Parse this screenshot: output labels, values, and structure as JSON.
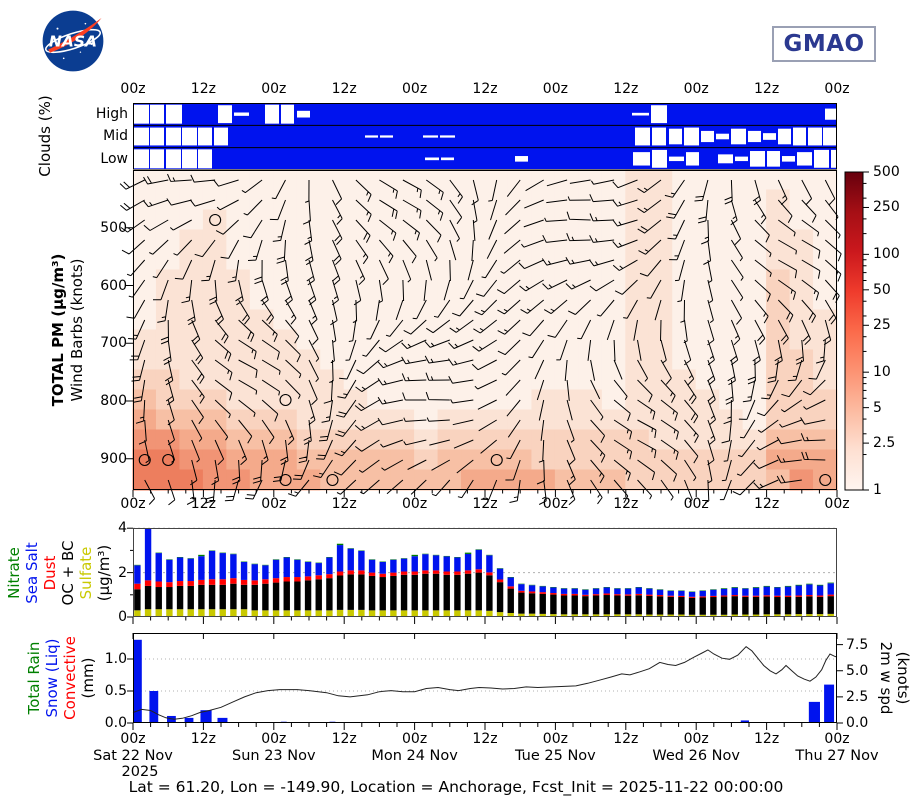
{
  "header": {
    "nasa": "NASA",
    "gmao": "GMAO"
  },
  "caption": "Lat = 61.20, Lon = -149.90, Location = Anchorage, Fcst_Init = 2025-11-22 00:00:00",
  "time_axis": {
    "major_hours": [
      0,
      12,
      24,
      36,
      48,
      60,
      72,
      84,
      96,
      108,
      120
    ],
    "labels": [
      "00z",
      "12z",
      "00z",
      "12z",
      "00z",
      "12z",
      "00z",
      "12z",
      "00z",
      "12z",
      "00z"
    ],
    "minor_step_hours": 3
  },
  "dates": [
    {
      "hour": 0,
      "line1": "Sat 22 Nov",
      "line2": "2025"
    },
    {
      "hour": 24,
      "line1": "Sun 23 Nov"
    },
    {
      "hour": 48,
      "line1": "Mon 24 Nov"
    },
    {
      "hour": 72,
      "line1": "Tue 25 Nov"
    },
    {
      "hour": 96,
      "line1": "Wed 26 Nov"
    },
    {
      "hour": 120,
      "line1": "Thu 27 Nov"
    }
  ],
  "chart_data": [
    {
      "id": "clouds",
      "type": "heatmap",
      "ylabel": "Clouds (%)",
      "rows": [
        "High",
        "Mid",
        "Low"
      ],
      "bg_color": "#0013ee",
      "clear_boxes": {
        "High": [
          [
            1,
            15,
            0.85
          ],
          [
            17,
            14,
            0.85
          ],
          [
            33,
            16,
            0.85
          ],
          [
            85,
            14,
            0.8
          ],
          [
            101,
            15,
            0.15
          ],
          [
            132,
            14,
            0.85
          ],
          [
            148,
            13,
            0.85
          ],
          [
            164,
            13,
            0.3
          ],
          [
            499,
            17,
            0.12
          ],
          [
            518,
            16,
            0.8
          ],
          [
            692,
            11,
            0.5
          ]
        ],
        "Mid": [
          [
            1,
            15,
            0.8
          ],
          [
            17,
            14,
            0.8
          ],
          [
            33,
            15,
            0.8
          ],
          [
            49,
            15,
            0.8
          ],
          [
            65,
            14,
            0.8
          ],
          [
            81,
            14,
            0.8
          ],
          [
            232,
            13,
            0.1
          ],
          [
            247,
            13,
            0.1
          ],
          [
            290,
            15,
            0.1
          ],
          [
            307,
            15,
            0.1
          ],
          [
            502,
            15,
            0.8
          ],
          [
            519,
            14,
            0.8
          ],
          [
            536,
            13,
            0.7
          ],
          [
            551,
            15,
            0.8
          ],
          [
            568,
            13,
            0.5
          ],
          [
            583,
            13,
            0.25
          ],
          [
            598,
            15,
            0.7
          ],
          [
            615,
            13,
            0.5
          ],
          [
            630,
            13,
            0.3
          ],
          [
            645,
            13,
            0.7
          ],
          [
            660,
            13,
            0.8
          ],
          [
            675,
            14,
            0.8
          ],
          [
            690,
            14,
            0.8
          ]
        ],
        "Low": [
          [
            1,
            15,
            0.85
          ],
          [
            17,
            14,
            0.85
          ],
          [
            33,
            15,
            0.85
          ],
          [
            49,
            15,
            0.85
          ],
          [
            65,
            14,
            0.85
          ],
          [
            292,
            14,
            0.12
          ],
          [
            308,
            13,
            0.12
          ],
          [
            382,
            13,
            0.25
          ],
          [
            500,
            17,
            0.6
          ],
          [
            519,
            15,
            0.8
          ],
          [
            536,
            15,
            0.2
          ],
          [
            553,
            13,
            0.6
          ],
          [
            585,
            15,
            0.4
          ],
          [
            602,
            13,
            0.2
          ],
          [
            617,
            15,
            0.7
          ],
          [
            634,
            13,
            0.7
          ],
          [
            649,
            13,
            0.25
          ],
          [
            664,
            15,
            0.6
          ],
          [
            681,
            15,
            0.8
          ],
          [
            698,
            5,
            0.8
          ]
        ]
      }
    },
    {
      "id": "pm_winds",
      "type": "heatmap",
      "ylabel_bold": "TOTAL PM (μg/m³)",
      "ylabel2": "Wind Barbs (knots)",
      "pressure_ticks": [
        500,
        600,
        700,
        800,
        900
      ],
      "colorbar": {
        "scale": "log",
        "range": [
          1,
          500
        ],
        "ticks": [
          "500",
          "250",
          "100",
          "50",
          "25",
          "10",
          "5",
          "2.5",
          "1"
        ]
      },
      "level_values": [
        1,
        1.5,
        2.5,
        4,
        6,
        10,
        15,
        25
      ],
      "level_colors": [
        "#fdf1e9",
        "#fbe3d5",
        "#f9d3bf",
        "#f7c0a5",
        "#f4aa8b",
        "#f19475",
        "#ed7e5e",
        "#e66544"
      ],
      "grid_rows": [
        "000000000000000000000110000000",
        "000000000000000000000110000100",
        "000100000000000000000110000100",
        "001100000000000000000110000110",
        "001100000000000000000110000110",
        "011110000000000000000110000210",
        "011110000000000000000110000210",
        "011111000000000000000110000211",
        "111111100000000000000110000211",
        "111111110000000000000110000221",
        "221111111000000000000111000221",
        "322211111100000001110111100222",
        "433322211111011111111111110222",
        "554433322222122222222211111333",
        "665544433333233332222222222444",
        "666554443333334444333222222354"
      ],
      "calm_cells": [
        [
          3,
          2
        ],
        [
          6,
          11
        ],
        [
          0,
          14
        ],
        [
          1,
          14
        ],
        [
          6,
          15
        ],
        [
          15,
          14
        ],
        [
          8,
          15
        ],
        [
          29,
          15
        ]
      ],
      "barb_grid": {
        "cols": 30,
        "rows": 16,
        "speed_range_kt": [
          3,
          26
        ]
      }
    },
    {
      "id": "aerosols",
      "type": "bar",
      "stacked": true,
      "unit_label": "(μg/m³)",
      "ylim": [
        0,
        4.2
      ],
      "yticks": [
        0,
        2,
        4
      ],
      "n_bars": 66,
      "legend": [
        {
          "label": "Nitrate",
          "color": "#008000"
        },
        {
          "label": "Sea Salt",
          "color": "#0013ee"
        },
        {
          "label": "Dust",
          "color": "#ff0000"
        },
        {
          "label": "OC + BC",
          "color": "#000000"
        },
        {
          "label": "Sulfate",
          "color": "#c9c900"
        }
      ],
      "series": [
        {
          "name": "Sulfate",
          "color": "#c9c900",
          "values": [
            0.3,
            0.35,
            0.35,
            0.35,
            0.35,
            0.35,
            0.35,
            0.35,
            0.35,
            0.35,
            0.35,
            0.3,
            0.3,
            0.3,
            0.3,
            0.3,
            0.3,
            0.3,
            0.3,
            0.32,
            0.32,
            0.32,
            0.3,
            0.3,
            0.3,
            0.3,
            0.3,
            0.3,
            0.3,
            0.3,
            0.3,
            0.3,
            0.3,
            0.28,
            0.22,
            0.18,
            0.15,
            0.15,
            0.14,
            0.13,
            0.12,
            0.12,
            0.12,
            0.12,
            0.12,
            0.12,
            0.12,
            0.12,
            0.11,
            0.11,
            0.11,
            0.11,
            0.1,
            0.1,
            0.1,
            0.1,
            0.11,
            0.11,
            0.11,
            0.12,
            0.12,
            0.12,
            0.13,
            0.13,
            0.13,
            0.14
          ]
        },
        {
          "name": "OC + BC",
          "color": "#000000",
          "values": [
            0.95,
            1.05,
            1.0,
            1.0,
            1.05,
            1.05,
            1.1,
            1.1,
            1.1,
            1.15,
            1.1,
            1.15,
            1.2,
            1.25,
            1.3,
            1.3,
            1.35,
            1.4,
            1.45,
            1.55,
            1.6,
            1.6,
            1.55,
            1.5,
            1.55,
            1.6,
            1.6,
            1.65,
            1.65,
            1.6,
            1.6,
            1.65,
            1.7,
            1.6,
            1.35,
            1.1,
            0.95,
            0.92,
            0.9,
            0.88,
            0.85,
            0.85,
            0.82,
            0.85,
            0.87,
            0.85,
            0.84,
            0.86,
            0.84,
            0.82,
            0.8,
            0.79,
            0.76,
            0.78,
            0.8,
            0.82,
            0.83,
            0.8,
            0.8,
            0.8,
            0.78,
            0.78,
            0.78,
            0.8,
            0.78,
            0.8
          ]
        },
        {
          "name": "Dust",
          "color": "#ff0000",
          "values": [
            0.25,
            0.25,
            0.25,
            0.22,
            0.22,
            0.22,
            0.22,
            0.25,
            0.25,
            0.25,
            0.22,
            0.2,
            0.2,
            0.2,
            0.2,
            0.2,
            0.18,
            0.18,
            0.18,
            0.18,
            0.18,
            0.18,
            0.15,
            0.15,
            0.15,
            0.15,
            0.15,
            0.15,
            0.15,
            0.15,
            0.15,
            0.15,
            0.15,
            0.13,
            0.12,
            0.1,
            0.08,
            0.08,
            0.08,
            0.07,
            0.07,
            0.07,
            0.06,
            0.06,
            0.07,
            0.06,
            0.06,
            0.06,
            0.06,
            0.06,
            0.05,
            0.05,
            0.05,
            0.05,
            0.05,
            0.05,
            0.05,
            0.05,
            0.05,
            0.06,
            0.06,
            0.06,
            0.06,
            0.06,
            0.06,
            0.07
          ]
        },
        {
          "name": "Sea Salt",
          "color": "#0013ee",
          "values": [
            0.83,
            2.33,
            1.28,
            1.01,
            1.06,
            1.01,
            1.07,
            1.28,
            1.18,
            1.08,
            0.81,
            0.73,
            0.63,
            0.83,
            0.88,
            0.78,
            0.65,
            0.55,
            0.75,
            1.19,
            0.98,
            0.88,
            0.58,
            0.53,
            0.58,
            0.58,
            0.69,
            0.73,
            0.68,
            0.68,
            0.63,
            0.74,
            0.88,
            0.77,
            0.49,
            0.4,
            0.3,
            0.28,
            0.26,
            0.25,
            0.24,
            0.24,
            0.23,
            0.25,
            0.27,
            0.25,
            0.26,
            0.29,
            0.27,
            0.24,
            0.22,
            0.23,
            0.22,
            0.25,
            0.28,
            0.3,
            0.33,
            0.32,
            0.36,
            0.39,
            0.37,
            0.41,
            0.45,
            0.48,
            0.45,
            0.51
          ]
        },
        {
          "name": "Nitrate",
          "color": "#008000",
          "values": [
            0.02,
            0.02,
            0.02,
            0.02,
            0.02,
            0.02,
            0.06,
            0.02,
            0.02,
            0.02,
            0.02,
            0.02,
            0.02,
            0.02,
            0.02,
            0.02,
            0.02,
            0.02,
            0.02,
            0.06,
            0.02,
            0.02,
            0.02,
            0.02,
            0.02,
            0.02,
            0.06,
            0.02,
            0.02,
            0.02,
            0.02,
            0.06,
            0.02,
            0.02,
            0.02,
            0.02,
            0.02,
            0.02,
            0.02,
            0.02,
            0.02,
            0.02,
            0.02,
            0.02,
            0.02,
            0.02,
            0.02,
            0.02,
            0.02,
            0.02,
            0.02,
            0.02,
            0.02,
            0.02,
            0.02,
            0.03,
            0.03,
            0.02,
            0.03,
            0.03,
            0.02,
            0.03,
            0.03,
            0.03,
            0.03,
            0.03
          ]
        }
      ]
    },
    {
      "id": "precip_wind",
      "type": "bar+line",
      "legend": [
        {
          "label": "Total Rain",
          "color": "#008000"
        },
        {
          "label": "Snow (Liq)",
          "color": "#0013ee"
        },
        {
          "label": "Convective",
          "color": "#ff0000"
        }
      ],
      "unit_label": "(mm)",
      "right_label1": "2m w spd",
      "right_label2": "(knots)",
      "ylim_left": [
        0,
        1.4
      ],
      "yticks_left": [
        "0.0",
        "0.5",
        "1.0"
      ],
      "ylim_right": [
        0,
        8.6
      ],
      "yticks_right": [
        "0.0",
        "2.5",
        "5.0",
        "7.5"
      ],
      "bar_color": "#0013ee",
      "line_color": "#222222",
      "bars": [
        [
          0.1,
          1.4,
          1.3
        ],
        [
          2.8,
          1.5,
          0.5
        ],
        [
          5.8,
          1.5,
          0.11
        ],
        [
          8.8,
          1.5,
          0.08
        ],
        [
          11.5,
          1.9,
          0.2
        ],
        [
          14.4,
          1.7,
          0.08
        ],
        [
          25.2,
          1.0,
          0.02
        ],
        [
          33.5,
          1.0,
          0.02
        ],
        [
          103.6,
          1.4,
          0.04
        ],
        [
          115.2,
          1.9,
          0.33
        ],
        [
          117.8,
          1.7,
          0.6
        ]
      ],
      "line": [
        [
          0,
          1.0
        ],
        [
          1.5,
          1.3
        ],
        [
          3,
          1.2
        ],
        [
          4.3,
          0.8
        ],
        [
          5.6,
          0.5
        ],
        [
          7,
          0.35
        ],
        [
          8.4,
          0.45
        ],
        [
          10,
          0.7
        ],
        [
          11.4,
          1.0
        ],
        [
          13,
          1.2
        ],
        [
          15,
          1.5
        ],
        [
          17,
          2.0
        ],
        [
          19,
          2.5
        ],
        [
          21,
          2.9
        ],
        [
          23,
          3.1
        ],
        [
          25,
          3.2
        ],
        [
          28,
          3.2
        ],
        [
          30,
          3.1
        ],
        [
          33,
          2.9
        ],
        [
          35,
          2.6
        ],
        [
          37,
          2.5
        ],
        [
          40,
          2.7
        ],
        [
          42,
          3.0
        ],
        [
          44,
          3.1
        ],
        [
          46,
          3.0
        ],
        [
          48,
          3.0
        ],
        [
          50,
          3.3
        ],
        [
          52,
          3.4
        ],
        [
          54,
          3.2
        ],
        [
          55.5,
          3.1
        ],
        [
          57.5,
          3.3
        ],
        [
          59,
          3.4
        ],
        [
          61,
          3.35
        ],
        [
          63,
          3.25
        ],
        [
          65,
          3.3
        ],
        [
          67,
          3.45
        ],
        [
          69,
          3.4
        ],
        [
          71.5,
          3.45
        ],
        [
          73.5,
          3.5
        ],
        [
          75.5,
          3.55
        ],
        [
          77.5,
          3.8
        ],
        [
          79.5,
          4.1
        ],
        [
          81.5,
          4.4
        ],
        [
          83.3,
          4.7
        ],
        [
          84.7,
          4.6
        ],
        [
          86.4,
          4.9
        ],
        [
          88,
          5.2
        ],
        [
          89.8,
          5.8
        ],
        [
          91.2,
          5.6
        ],
        [
          92.5,
          5.5
        ],
        [
          94,
          5.8
        ],
        [
          95.6,
          6.3
        ],
        [
          97,
          6.7
        ],
        [
          98,
          7.0
        ],
        [
          99,
          6.6
        ],
        [
          100.4,
          6.2
        ],
        [
          101.7,
          6.1
        ],
        [
          103.1,
          6.5
        ],
        [
          104.5,
          7.3
        ],
        [
          105.5,
          6.9
        ],
        [
          106.5,
          6.2
        ],
        [
          107.5,
          5.5
        ],
        [
          108.6,
          5.0
        ],
        [
          109.6,
          4.7
        ],
        [
          110.6,
          5.1
        ],
        [
          111.3,
          5.5
        ],
        [
          112.3,
          5.0
        ],
        [
          113.3,
          4.5
        ],
        [
          114.4,
          4.2
        ],
        [
          115.4,
          4.0
        ],
        [
          116.4,
          4.4
        ],
        [
          117.4,
          5.1
        ],
        [
          118.1,
          6.0
        ],
        [
          118.8,
          6.6
        ],
        [
          119.5,
          6.4
        ],
        [
          120,
          6.3
        ]
      ]
    }
  ]
}
